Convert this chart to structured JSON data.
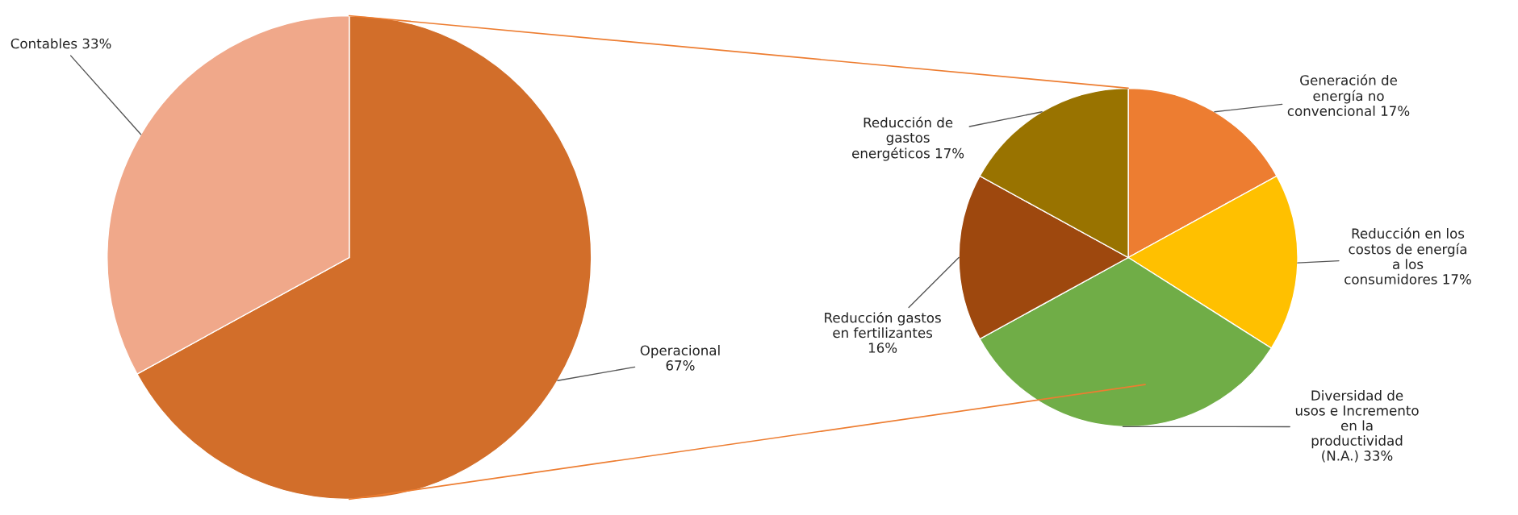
{
  "chart_data": [
    {
      "type": "pie",
      "categories": [
        "Operacional",
        "Contables"
      ],
      "values": [
        67,
        33
      ],
      "value_labels": [
        "67%",
        "33%"
      ],
      "colors": [
        "#d26e2a",
        "#f0a88a"
      ]
    },
    {
      "type": "pie",
      "categories": [
        "Generación de energía no convencional",
        "Reducción en los costos de energía a los consumidores",
        "Diversidad de usos e Incremento en la productividad (N.A.)",
        "Reducción gastos en fertilizantes",
        "Reducción de gastos energéticos"
      ],
      "values": [
        17,
        17,
        33,
        16,
        17
      ],
      "value_labels": [
        "17%",
        "17%",
        "33%",
        "16%",
        "17%"
      ],
      "colors": [
        "#ed7d31",
        "#ffc000",
        "#70ad47",
        "#9e480e",
        "#997300"
      ]
    }
  ]
}
